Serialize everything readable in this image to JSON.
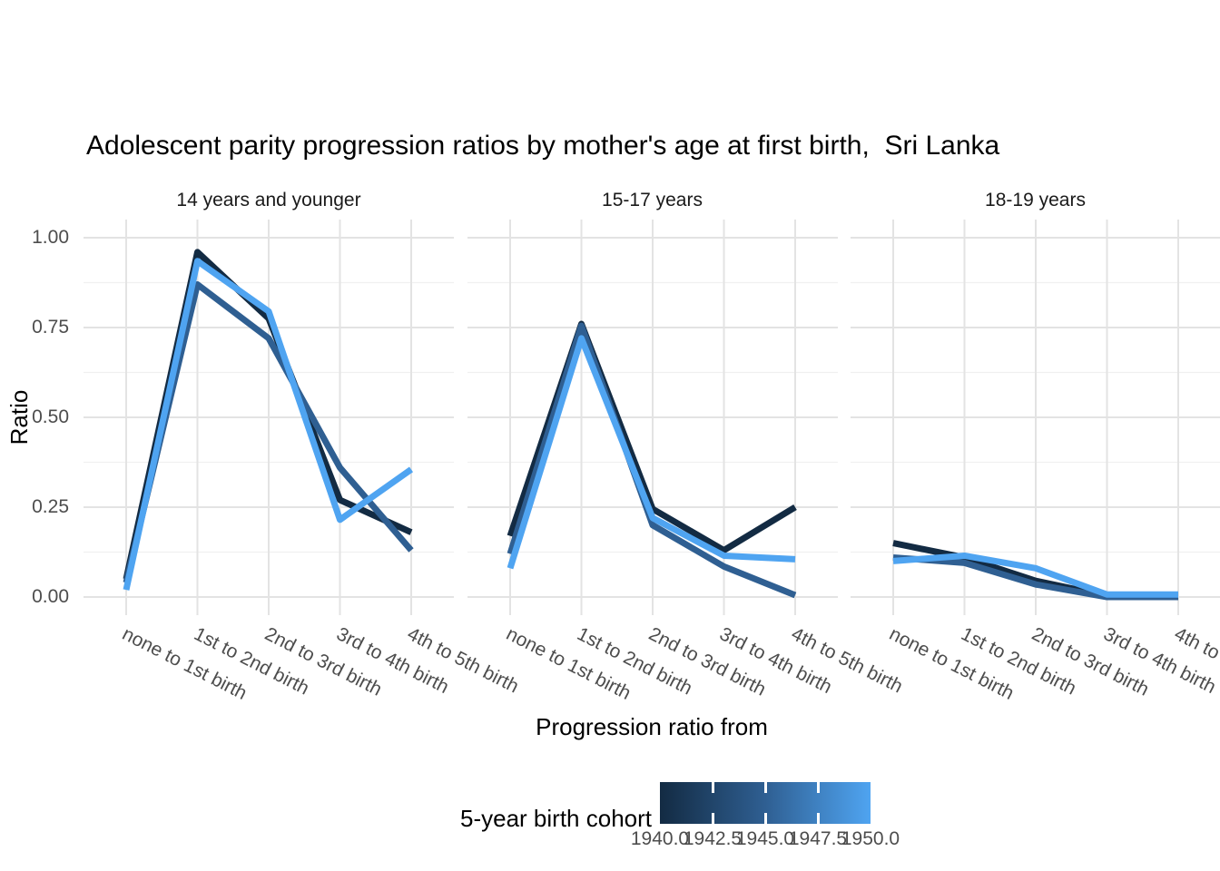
{
  "chart_data": {
    "type": "line",
    "title": "Adolescent parity progression ratios by mother's age at first birth,  Sri Lanka",
    "xlabel": "Progression ratio from",
    "ylabel": "Ratio",
    "categories": [
      "none to 1st birth",
      "1st to 2nd birth",
      "2nd to 3rd birth",
      "3rd to 4th birth",
      "4th to 5th birth"
    ],
    "y_tick_labels": [
      "1.00",
      "0.75",
      "0.50",
      "0.25",
      "0.00"
    ],
    "y_tick_values": [
      1.0,
      0.75,
      0.5,
      0.25,
      0.0
    ],
    "ylim": [
      0,
      1
    ],
    "grid": "major and minor horizontal, major vertical at categories",
    "legend": {
      "title": "5-year birth cohort",
      "tick_labels": [
        "1940.0",
        "1942.5",
        "1945.0",
        "1947.5",
        "1950.0"
      ],
      "min": 1940.0,
      "max": 1950.0,
      "low_color": "#132B43",
      "mid_color": "#2F5F92",
      "high_color": "#4FA4F1",
      "position": "bottom"
    },
    "facets": [
      {
        "label": "14 years and younger",
        "series": [
          {
            "name": "1940",
            "color": "#132B43",
            "values": [
              0.05,
              0.96,
              0.775,
              0.27,
              0.18
            ]
          },
          {
            "name": "1945",
            "color": "#2F5F92",
            "values": [
              0.04,
              0.87,
              0.72,
              0.36,
              0.13
            ]
          },
          {
            "name": "1950",
            "color": "#4FA4F1",
            "values": [
              0.02,
              0.935,
              0.795,
              0.215,
              0.355
            ]
          }
        ]
      },
      {
        "label": "15-17 years",
        "series": [
          {
            "name": "1940",
            "color": "#132B43",
            "values": [
              0.17,
              0.76,
              0.245,
              0.13,
              0.25
            ]
          },
          {
            "name": "1945",
            "color": "#2F5F92",
            "values": [
              0.12,
              0.755,
              0.2,
              0.085,
              0.005
            ]
          },
          {
            "name": "1950",
            "color": "#4FA4F1",
            "values": [
              0.08,
              0.72,
              0.22,
              0.115,
              0.105
            ]
          }
        ]
      },
      {
        "label": "18-19 years",
        "series": [
          {
            "name": "1940",
            "color": "#132B43",
            "values": [
              0.15,
              0.11,
              0.045,
              0.003,
              0.003
            ]
          },
          {
            "name": "1945",
            "color": "#2F5F92",
            "values": [
              0.11,
              0.095,
              0.035,
              0.0,
              0.0
            ]
          },
          {
            "name": "1950",
            "color": "#4FA4F1",
            "values": [
              0.1,
              0.115,
              0.08,
              0.007,
              0.007
            ]
          }
        ]
      }
    ]
  }
}
